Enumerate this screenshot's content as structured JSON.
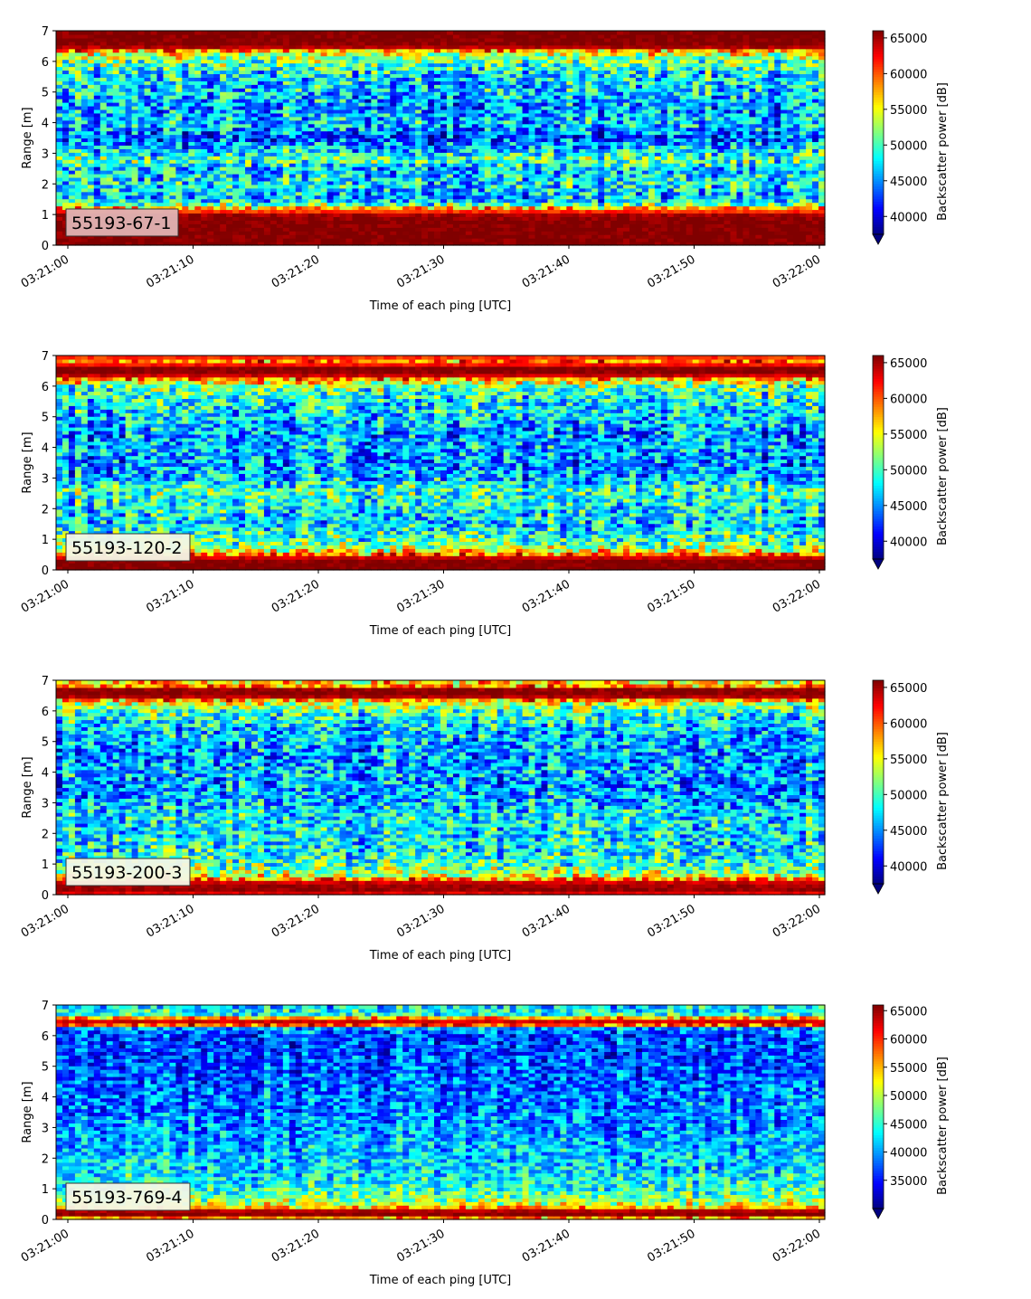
{
  "chart_data": [
    {
      "type": "heatmap",
      "label": "55193-67-1",
      "xlabel": "Time of each ping [UTC]",
      "ylabel": "Range [m]",
      "ylim": [
        0,
        7
      ],
      "yticks": [
        "0",
        "1",
        "2",
        "3",
        "4",
        "5",
        "6",
        "7"
      ],
      "xticks": [
        "03:21:00",
        "03:21:10",
        "03:21:20",
        "03:21:30",
        "03:21:40",
        "03:21:50",
        "03:22:00"
      ],
      "colorbar": {
        "label": "Backscatter power [dB]",
        "ticks": [
          "40000",
          "45000",
          "50000",
          "55000",
          "60000",
          "65000"
        ],
        "vmin": 37500,
        "vmax": 66000,
        "extend": "min"
      },
      "colormap": "jet",
      "profile": [
        {
          "range": 0.0,
          "value": 66000
        },
        {
          "range": 0.2,
          "value": 66000
        },
        {
          "range": 0.4,
          "value": 66000
        },
        {
          "range": 0.6,
          "value": 66000
        },
        {
          "range": 0.8,
          "value": 66000
        },
        {
          "range": 1.0,
          "value": 65000
        },
        {
          "range": 1.2,
          "value": 58000
        },
        {
          "range": 1.4,
          "value": 48000
        },
        {
          "range": 1.6,
          "value": 46000
        },
        {
          "range": 2.0,
          "value": 48000
        },
        {
          "range": 2.5,
          "value": 46000
        },
        {
          "range": 2.8,
          "value": 51000
        },
        {
          "range": 3.0,
          "value": 48000
        },
        {
          "range": 3.5,
          "value": 43000
        },
        {
          "range": 4.0,
          "value": 47000
        },
        {
          "range": 4.5,
          "value": 45000
        },
        {
          "range": 5.0,
          "value": 47000
        },
        {
          "range": 5.5,
          "value": 47000
        },
        {
          "range": 6.0,
          "value": 51000
        },
        {
          "range": 6.3,
          "value": 55000
        },
        {
          "range": 6.5,
          "value": 66000
        },
        {
          "range": 7.0,
          "value": 66000
        }
      ]
    },
    {
      "type": "heatmap",
      "label": "55193-120-2",
      "xlabel": "Time of each ping [UTC]",
      "ylabel": "Range [m]",
      "ylim": [
        0,
        7
      ],
      "yticks": [
        "0",
        "1",
        "2",
        "3",
        "4",
        "5",
        "6",
        "7"
      ],
      "xticks": [
        "03:21:00",
        "03:21:10",
        "03:21:20",
        "03:21:30",
        "03:21:40",
        "03:21:50",
        "03:22:00"
      ],
      "colorbar": {
        "label": "Backscatter power [dB]",
        "ticks": [
          "40000",
          "45000",
          "50000",
          "55000",
          "60000",
          "65000"
        ],
        "vmin": 37500,
        "vmax": 66000,
        "extend": "min"
      },
      "colormap": "jet",
      "profile": [
        {
          "range": 0.0,
          "value": 66000
        },
        {
          "range": 0.15,
          "value": 66000
        },
        {
          "range": 0.35,
          "value": 66000
        },
        {
          "range": 0.5,
          "value": 60000
        },
        {
          "range": 0.7,
          "value": 53000
        },
        {
          "range": 1.0,
          "value": 50000
        },
        {
          "range": 1.5,
          "value": 47000
        },
        {
          "range": 2.0,
          "value": 48000
        },
        {
          "range": 2.6,
          "value": 50000
        },
        {
          "range": 3.0,
          "value": 46000
        },
        {
          "range": 3.5,
          "value": 45000
        },
        {
          "range": 4.0,
          "value": 46000
        },
        {
          "range": 4.5,
          "value": 45000
        },
        {
          "range": 5.0,
          "value": 47000
        },
        {
          "range": 5.5,
          "value": 48000
        },
        {
          "range": 6.0,
          "value": 51000
        },
        {
          "range": 6.2,
          "value": 56000
        },
        {
          "range": 6.4,
          "value": 66000
        },
        {
          "range": 6.6,
          "value": 66000
        },
        {
          "range": 6.8,
          "value": 59000
        },
        {
          "range": 7.0,
          "value": 62000
        }
      ]
    },
    {
      "type": "heatmap",
      "label": "55193-200-3",
      "xlabel": "Time of each ping [UTC]",
      "ylabel": "Range [m]",
      "ylim": [
        0,
        7
      ],
      "yticks": [
        "0",
        "1",
        "2",
        "3",
        "4",
        "5",
        "6",
        "7"
      ],
      "xticks": [
        "03:21:00",
        "03:21:10",
        "03:21:20",
        "03:21:30",
        "03:21:40",
        "03:21:50",
        "03:22:00"
      ],
      "colorbar": {
        "label": "Backscatter power [dB]",
        "ticks": [
          "40000",
          "45000",
          "50000",
          "55000",
          "60000",
          "65000"
        ],
        "vmin": 37500,
        "vmax": 66000,
        "extend": "min"
      },
      "colormap": "jet",
      "profile": [
        {
          "range": 0.0,
          "value": 62000
        },
        {
          "range": 0.2,
          "value": 66000
        },
        {
          "range": 0.4,
          "value": 64000
        },
        {
          "range": 0.6,
          "value": 55000
        },
        {
          "range": 0.8,
          "value": 52000
        },
        {
          "range": 1.0,
          "value": 50000
        },
        {
          "range": 1.5,
          "value": 48000
        },
        {
          "range": 2.0,
          "value": 48000
        },
        {
          "range": 2.5,
          "value": 48000
        },
        {
          "range": 3.0,
          "value": 46000
        },
        {
          "range": 3.5,
          "value": 45000
        },
        {
          "range": 4.0,
          "value": 46000
        },
        {
          "range": 4.5,
          "value": 45000
        },
        {
          "range": 5.0,
          "value": 46000
        },
        {
          "range": 5.5,
          "value": 47000
        },
        {
          "range": 6.0,
          "value": 50000
        },
        {
          "range": 6.3,
          "value": 55000
        },
        {
          "range": 6.5,
          "value": 66000
        },
        {
          "range": 6.7,
          "value": 66000
        },
        {
          "range": 6.85,
          "value": 57000
        },
        {
          "range": 7.0,
          "value": 55000
        }
      ]
    },
    {
      "type": "heatmap",
      "label": "55193-769-4",
      "xlabel": "Time of each ping [UTC]",
      "ylabel": "Range [m]",
      "ylim": [
        0,
        7
      ],
      "yticks": [
        "0",
        "1",
        "2",
        "3",
        "4",
        "5",
        "6",
        "7"
      ],
      "xticks": [
        "03:21:00",
        "03:21:10",
        "03:21:20",
        "03:21:30",
        "03:21:40",
        "03:21:50",
        "03:22:00"
      ],
      "colorbar": {
        "label": "Backscatter power [dB]",
        "ticks": [
          "35000",
          "40000",
          "45000",
          "50000",
          "55000",
          "60000",
          "65000"
        ],
        "vmin": 30000,
        "vmax": 66000,
        "extend": "min"
      },
      "colormap": "jet",
      "profile": [
        {
          "range": 0.0,
          "value": 50000
        },
        {
          "range": 0.15,
          "value": 66000
        },
        {
          "range": 0.3,
          "value": 64000
        },
        {
          "range": 0.45,
          "value": 52000
        },
        {
          "range": 0.7,
          "value": 48000
        },
        {
          "range": 1.0,
          "value": 45000
        },
        {
          "range": 1.5,
          "value": 43000
        },
        {
          "range": 2.0,
          "value": 42000
        },
        {
          "range": 2.5,
          "value": 41000
        },
        {
          "range": 3.0,
          "value": 40000
        },
        {
          "range": 3.5,
          "value": 39000
        },
        {
          "range": 4.0,
          "value": 39000
        },
        {
          "range": 4.5,
          "value": 38000
        },
        {
          "range": 5.0,
          "value": 38000
        },
        {
          "range": 5.5,
          "value": 37000
        },
        {
          "range": 6.0,
          "value": 37000
        },
        {
          "range": 6.25,
          "value": 40000
        },
        {
          "range": 6.4,
          "value": 66000
        },
        {
          "range": 6.55,
          "value": 60000
        },
        {
          "range": 6.7,
          "value": 45000
        },
        {
          "range": 7.0,
          "value": 42000
        }
      ]
    }
  ]
}
